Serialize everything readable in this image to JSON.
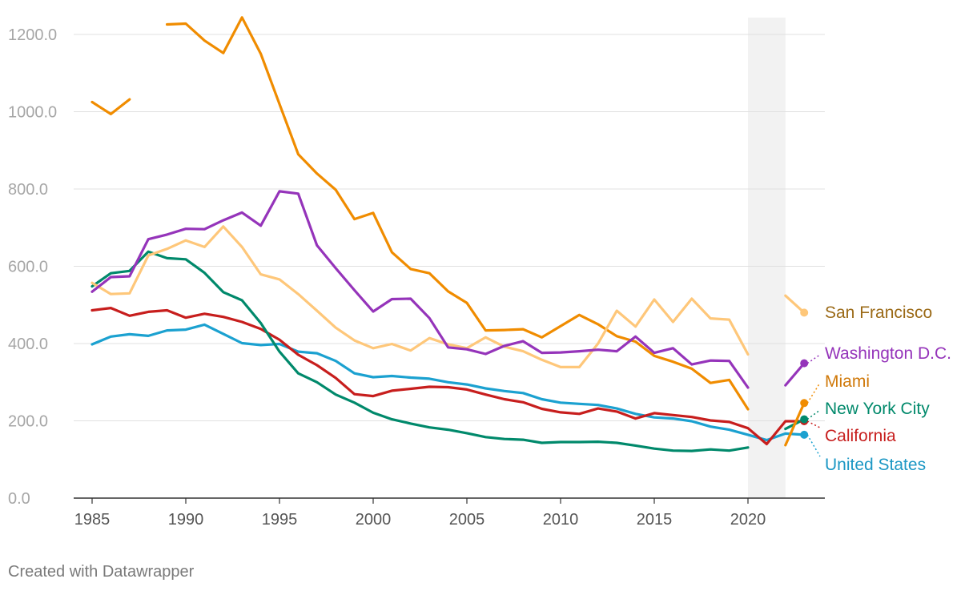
{
  "chart_data": {
    "type": "line",
    "title": "",
    "xlabel": "",
    "ylabel": "",
    "xlim": [
      1985,
      2023
    ],
    "ylim": [
      0,
      1200
    ],
    "y_ticks": [
      0,
      200,
      400,
      600,
      800,
      1000,
      1200
    ],
    "y_tick_labels": [
      "0.0",
      "200.0",
      "400.0",
      "600.0",
      "800.0",
      "1000.0",
      "1200.0"
    ],
    "x_ticks": [
      1985,
      1990,
      1995,
      2000,
      2005,
      2010,
      2015,
      2020
    ],
    "x_tick_labels": [
      "1985",
      "1990",
      "1995",
      "2000",
      "2005",
      "2010",
      "2015",
      "2020"
    ],
    "shaded_range": [
      2020,
      2022
    ],
    "years": [
      1985,
      1986,
      1987,
      1988,
      1989,
      1990,
      1991,
      1992,
      1993,
      1994,
      1995,
      1996,
      1997,
      1998,
      1999,
      2000,
      2001,
      2002,
      2003,
      2004,
      2005,
      2006,
      2007,
      2008,
      2009,
      2010,
      2011,
      2012,
      2013,
      2014,
      2015,
      2016,
      2017,
      2018,
      2019,
      2020,
      2021,
      2022,
      2023
    ],
    "series": [
      {
        "name": "United States",
        "color": "#1ba1d0",
        "end_dot": true,
        "values": [
          398,
          418,
          424,
          420,
          434,
          436,
          449,
          425,
          401,
          396,
          399,
          379,
          375,
          355,
          323,
          313,
          316,
          312,
          309,
          300,
          294,
          284,
          277,
          272,
          256,
          247,
          244,
          241,
          232,
          218,
          209,
          206,
          199,
          185,
          177,
          164,
          150,
          167,
          164
        ]
      },
      {
        "name": "California",
        "color": "#c71e1d",
        "end_dot": true,
        "values": [
          486,
          492,
          472,
          482,
          486,
          467,
          477,
          469,
          456,
          438,
          410,
          371,
          344,
          311,
          269,
          264,
          278,
          283,
          288,
          287,
          281,
          268,
          256,
          248,
          231,
          222,
          218,
          232,
          224,
          206,
          220,
          215,
          210,
          201,
          197,
          181,
          140,
          199,
          199
        ]
      },
      {
        "name": "New York City",
        "color": "#00896b",
        "end_dot": true,
        "values": [
          548,
          582,
          588,
          638,
          621,
          618,
          583,
          533,
          512,
          453,
          379,
          323,
          300,
          268,
          247,
          221,
          204,
          193,
          183,
          177,
          168,
          158,
          153,
          151,
          143,
          145,
          145,
          146,
          143,
          136,
          128,
          123,
          122,
          126,
          123,
          131,
          null,
          179,
          204
        ]
      },
      {
        "name": "Miami",
        "color": "#f08c00",
        "end_dot": true,
        "values": [
          1025,
          994,
          1032,
          null,
          1226,
          1228,
          1184,
          1152,
          1244,
          1150,
          1020,
          890,
          840,
          798,
          722,
          738,
          636,
          593,
          582,
          535,
          505,
          434,
          435,
          437,
          416,
          445,
          474,
          450,
          419,
          405,
          368,
          353,
          335,
          298,
          306,
          230,
          null,
          137,
          246
        ]
      },
      {
        "name": "San Francisco",
        "color": "#fec77a",
        "end_dot": true,
        "values": [
          557,
          528,
          530,
          628,
          645,
          667,
          650,
          703,
          650,
          579,
          566,
          528,
          485,
          441,
          408,
          388,
          399,
          382,
          414,
          398,
          388,
          416,
          392,
          380,
          358,
          339,
          339,
          400,
          485,
          444,
          514,
          456,
          516,
          465,
          462,
          372,
          null,
          524,
          480
        ]
      },
      {
        "name": "Washington D.C.",
        "color": "#9534ba",
        "end_dot": true,
        "values": [
          534,
          572,
          574,
          670,
          682,
          697,
          696,
          719,
          739,
          705,
          794,
          788,
          654,
          595,
          538,
          483,
          515,
          516,
          466,
          390,
          385,
          373,
          394,
          406,
          376,
          377,
          380,
          384,
          380,
          418,
          376,
          388,
          346,
          356,
          355,
          286,
          null,
          292,
          349
        ]
      }
    ],
    "legend_labels": [
      {
        "name": "San Francisco",
        "color": "#9b6a17"
      },
      {
        "name": "Washington D.C.",
        "color": "#9534ba"
      },
      {
        "name": "Miami",
        "color": "#d0790a"
      },
      {
        "name": "New York City",
        "color": "#00896b"
      },
      {
        "name": "California",
        "color": "#c71e1d"
      },
      {
        "name": "United States",
        "color": "#1b97c4"
      }
    ]
  },
  "footer": {
    "credit": "Created with Datawrapper"
  }
}
